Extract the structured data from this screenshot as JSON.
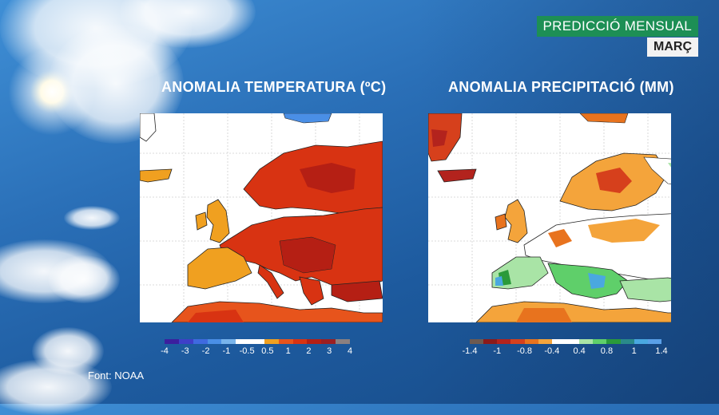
{
  "header": {
    "title": "PREDICCIÓ MENSUAL",
    "month": "MARÇ"
  },
  "panels": [
    {
      "title": "ANOMALIA TEMPERATURA (ºC)",
      "colorbar": {
        "colors": [
          "#3b1f9e",
          "#3e3fc8",
          "#3f6ae0",
          "#4a8fe6",
          "#78b4ec",
          "#ffffff",
          "#ffffff",
          "#f0a020",
          "#e7541c",
          "#d83312",
          "#b51f14",
          "#9b1f22",
          "#8b8080"
        ],
        "ticks": [
          "-4",
          "-3",
          "-2",
          "-1",
          "-0.5",
          "0.5",
          "1",
          "2",
          "3",
          "4"
        ]
      }
    },
    {
      "title": "ANOMALIA PRECIPITACIÓ (MM)",
      "colorbar": {
        "colors": [
          "#6e5a50",
          "#8a1a1a",
          "#b3231d",
          "#d6401c",
          "#e8731e",
          "#f4a43b",
          "#ffffff",
          "#ffffff",
          "#a9e4a6",
          "#5fcf6a",
          "#2a9a3a",
          "#2a8a8a",
          "#4aa8e0",
          "#5aa0e8"
        ],
        "ticks": [
          "-1.4",
          "-1",
          "-0.8",
          "-0.4",
          "0.4",
          "0.8",
          "1",
          "1.4"
        ]
      }
    }
  ],
  "source": "Font: NOAA"
}
